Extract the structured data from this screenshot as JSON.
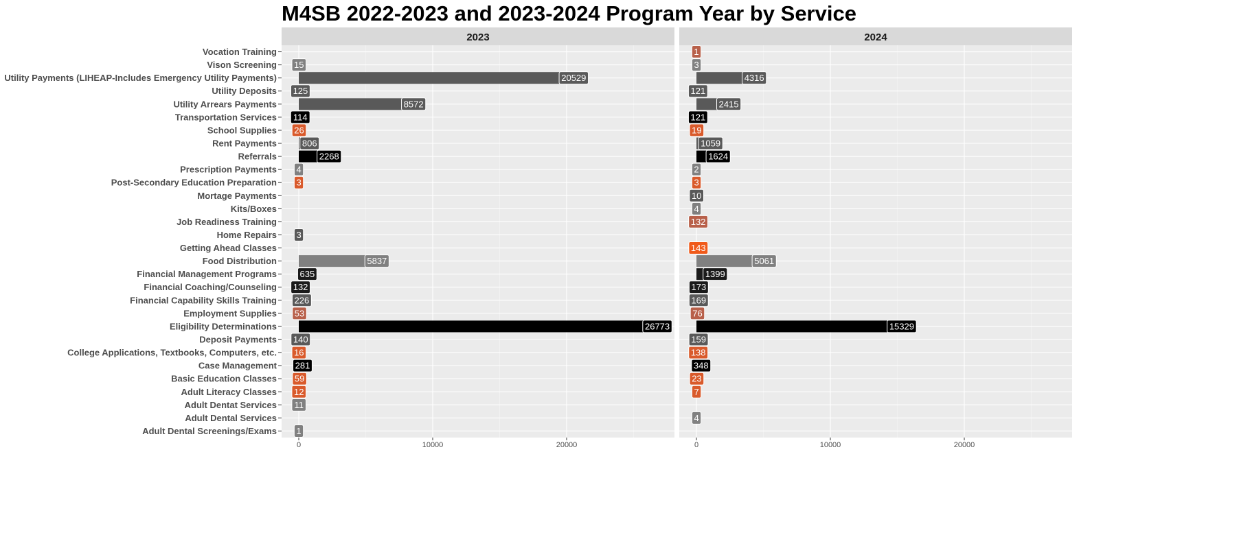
{
  "chart_data": {
    "type": "bar",
    "orientation": "horizontal",
    "title": "M4SB 2022-2023 and 2023-2024 Program Year by Service",
    "xlim": [
      -1300,
      28000
    ],
    "x_ticks": [
      0,
      10000,
      20000
    ],
    "grid": true,
    "categories": [
      "Vocation Training",
      "Vison Screening",
      "Utility Payments (LIHEAP-Includes Emergency Utility Payments)",
      "Utility Deposits",
      "Utility Arrears Payments",
      "Transportation Services",
      "School Supplies",
      "Rent Payments",
      "Referrals",
      "Prescription Payments",
      "Post-Secondary Education Preparation",
      "Mortage Payments",
      "Kits/Boxes",
      "Job Readiness Training",
      "Home Repairs",
      "Getting Ahead Classes",
      "Food Distribution",
      "Financial Management Programs",
      "Financial Coaching/Counseling",
      "Financial Capability Skills Training",
      "Employment Supplies",
      "Eligibility Determinations",
      "Deposit Payments",
      "College Applications, Textbooks, Computers, etc.",
      "Case Management",
      "Basic Education Classes",
      "Adult Literacy Classes",
      "Adult Dentat Services",
      "Adult Dental Services",
      "Adult Dental Screenings/Exams"
    ],
    "category_colors": [
      "#b8604a",
      "#808080",
      "#595959",
      "#595959",
      "#595959",
      "#000000",
      "#d95a2b",
      "#595959",
      "#000000",
      "#808080",
      "#d95a2b",
      "#595959",
      "#808080",
      "#b8604a",
      "#595959",
      "#f05a1a",
      "#808080",
      "#1a1a1a",
      "#1a1a1a",
      "#595959",
      "#b8604a",
      "#000000",
      "#595959",
      "#d95a2b",
      "#000000",
      "#d95a2b",
      "#d95a2b",
      "#808080",
      "#808080",
      "#808080"
    ],
    "panels": [
      {
        "name": "2023",
        "values": [
          null,
          15,
          20529,
          125,
          8572,
          114,
          26,
          806,
          2268,
          4,
          3,
          null,
          null,
          null,
          3,
          null,
          5837,
          635,
          132,
          226,
          53,
          26773,
          140,
          16,
          281,
          59,
          12,
          11,
          null,
          1
        ]
      },
      {
        "name": "2024",
        "values": [
          1,
          3,
          4316,
          121,
          2415,
          121,
          19,
          1059,
          1624,
          2,
          3,
          10,
          4,
          132,
          null,
          143,
          5061,
          1399,
          173,
          169,
          76,
          15329,
          159,
          138,
          348,
          23,
          7,
          null,
          4,
          null
        ]
      }
    ]
  }
}
